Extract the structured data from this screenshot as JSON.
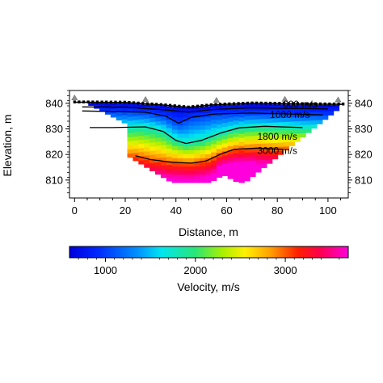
{
  "chart_data": {
    "type": "heatmap",
    "title": "",
    "xlabel": "Distance, m",
    "ylabel": "Elevation, m",
    "xlim": [
      -2,
      108
    ],
    "ylim": [
      803,
      845
    ],
    "x_ticks": [
      "0",
      "20",
      "40",
      "60",
      "80",
      "100"
    ],
    "y_ticks_left": [
      "810",
      "820",
      "830",
      "840"
    ],
    "y_ticks_right": [
      "810",
      "820",
      "830",
      "840"
    ],
    "grid": false,
    "colorbar": {
      "label": "Velocity, m/s",
      "range": [
        600,
        3700
      ],
      "ticks": [
        "1000",
        "2000",
        "3000"
      ],
      "placement": "bottom"
    },
    "contours": [
      {
        "label": "600 m/s",
        "points": [
          [
            3,
            838.6
          ],
          [
            20,
            838.5
          ],
          [
            35,
            837.5
          ],
          [
            45,
            836.6
          ],
          [
            55,
            837.6
          ],
          [
            70,
            838.2
          ],
          [
            85,
            838.0
          ],
          [
            100,
            837.8
          ]
        ]
      },
      {
        "label": "1000 m/s",
        "points": [
          [
            3,
            837
          ],
          [
            15,
            836.8
          ],
          [
            28,
            836.5
          ],
          [
            36,
            835
          ],
          [
            41,
            832.2
          ],
          [
            46,
            834.5
          ],
          [
            55,
            835.8
          ],
          [
            70,
            836.2
          ],
          [
            85,
            835.8
          ],
          [
            98,
            835.5
          ]
        ]
      },
      {
        "label": "1800 m/s",
        "points": [
          [
            6,
            830.5
          ],
          [
            15,
            830.5
          ],
          [
            28,
            830.8
          ],
          [
            35,
            829
          ],
          [
            40,
            825.5
          ],
          [
            44,
            824.3
          ],
          [
            50,
            825.5
          ],
          [
            58,
            828.5
          ],
          [
            65,
            830.4
          ],
          [
            75,
            831
          ],
          [
            90,
            830.5
          ]
        ]
      },
      {
        "label": "3000 m/s",
        "points": [
          [
            24,
            819.5
          ],
          [
            30,
            818
          ],
          [
            38,
            817
          ],
          [
            46,
            816.6
          ],
          [
            52,
            817.5
          ],
          [
            58,
            820.3
          ],
          [
            63,
            822
          ],
          [
            72,
            822.5
          ],
          [
            82,
            822
          ]
        ]
      }
    ],
    "annotations": {
      "receiver_count": 60,
      "source_positions": [
        0,
        28,
        56,
        83,
        104
      ],
      "surface_start": 0,
      "surface_end": 106
    }
  }
}
